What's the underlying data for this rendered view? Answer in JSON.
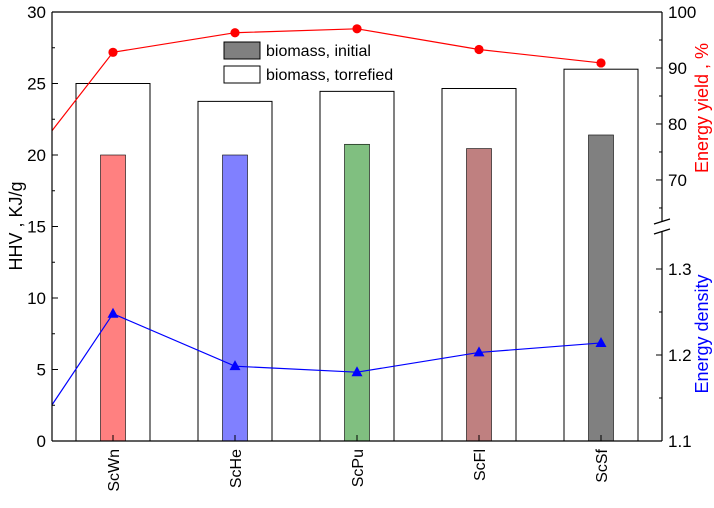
{
  "chart_data": {
    "type": "bar",
    "categories": [
      "ScWn",
      "ScHe",
      "ScPu",
      "ScFl",
      "ScSf"
    ],
    "series": [
      {
        "name": "biomass, initial",
        "axis": "left",
        "values": [
          20.0,
          20.0,
          20.75,
          20.45,
          21.4
        ],
        "colors": [
          "#ff8080",
          "#8080ff",
          "#80bf80",
          "#bf8080",
          "#808080"
        ]
      },
      {
        "name": "biomass, torrefied",
        "axis": "left",
        "values": [
          25.0,
          23.75,
          24.45,
          24.65,
          26.0
        ],
        "colors": [
          "#ffffff",
          "#ffffff",
          "#ffffff",
          "#ffffff",
          "#ffffff"
        ]
      },
      {
        "name": "Energy yield",
        "axis": "right-top",
        "type": "line",
        "color": "#ff0000",
        "values": [
          92.8,
          96.3,
          97.0,
          93.3,
          90.9
        ],
        "start_value": 78.8
      },
      {
        "name": "Energy density",
        "axis": "right-bottom",
        "type": "line",
        "color": "#0000ff",
        "values": [
          1.248,
          1.187,
          1.18,
          1.203,
          1.214
        ],
        "start_value": 1.142
      }
    ],
    "left_axis": {
      "label": "HHV , KJ/g",
      "ylim": [
        0,
        30
      ],
      "ticks": [
        "0",
        "5",
        "10",
        "15",
        "20",
        "25",
        "30"
      ]
    },
    "right_top_axis": {
      "label": "Energy yield , %",
      "ylim": [
        61.6,
        100
      ],
      "ticks": [
        "70",
        "80",
        "90",
        "100"
      ],
      "color": "#ff0000"
    },
    "right_bottom_axis": {
      "label": "Energy density",
      "ylim": [
        1.1,
        1.35
      ],
      "ticks": [
        "1.1",
        "1.2",
        "1.3"
      ],
      "color": "#0000ff"
    },
    "legend": {
      "position": "top-center",
      "items": [
        "biomass, initial",
        "biomass, torrefied"
      ]
    }
  }
}
